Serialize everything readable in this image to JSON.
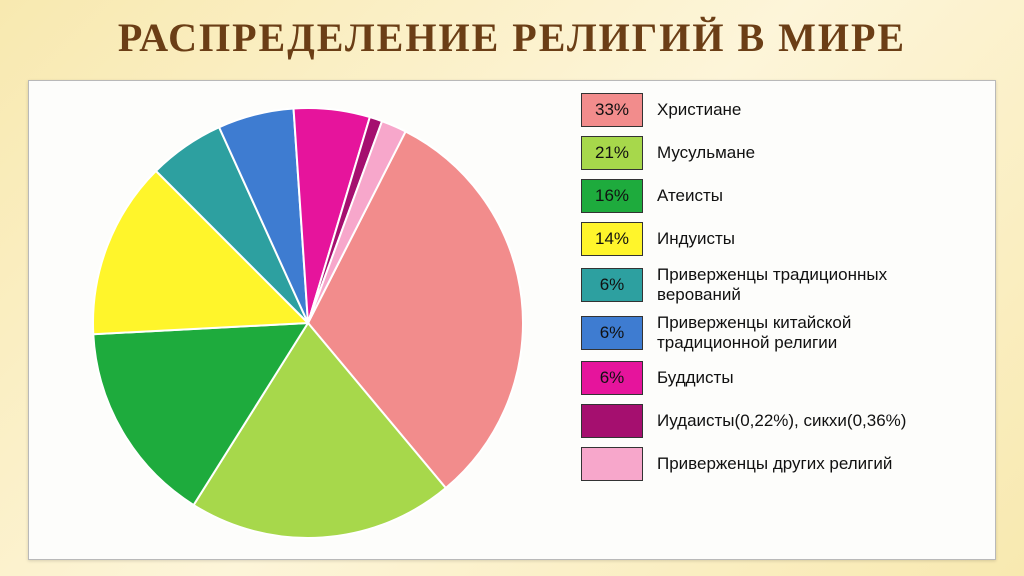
{
  "title": "РАСПРЕДЕЛЕНИЕ РЕЛИГИЙ В МИРЕ",
  "chart": {
    "type": "pie",
    "background_color": "#fdfdfb",
    "border_color": "#b9b9b9",
    "radius": 215,
    "start_angle_deg": -63,
    "slice_gap_color": "#ffffff",
    "label_fontsize": 17,
    "label_color": "#111111",
    "swatch_border": "#333333",
    "swatch_w": 62,
    "swatch_h": 34,
    "slices": [
      {
        "label": "Христиане",
        "pct_display": "33%",
        "value": 33,
        "color": "#f28c8c"
      },
      {
        "label": "Мусульмане",
        "pct_display": "21%",
        "value": 21,
        "color": "#a7d84b"
      },
      {
        "label": "Атеисты",
        "pct_display": "16%",
        "value": 16,
        "color": "#1eab3d"
      },
      {
        "label": "Индуисты",
        "pct_display": "14%",
        "value": 14,
        "color": "#fff52b"
      },
      {
        "label": "Приверженцы традиционных верований",
        "pct_display": "6%",
        "value": 6,
        "color": "#2da0a0"
      },
      {
        "label": "Приверженцы китайской традиционной религии",
        "pct_display": "6%",
        "value": 6,
        "color": "#3e7cd1"
      },
      {
        "label": "Буддисты",
        "pct_display": "6%",
        "value": 6,
        "color": "#e6149c"
      },
      {
        "label": "Иудаисты(0,22%), сикхи(0,36%)",
        "pct_display": "",
        "value": 1,
        "color": "#a50f6f"
      },
      {
        "label": "Приверженцы других религий",
        "pct_display": "",
        "value": 2,
        "color": "#f7a7cb"
      }
    ]
  },
  "page_bg_gradient": [
    "#f8e9b0",
    "#fdf5d9",
    "#f8e9b0"
  ],
  "title_color": "#6b3e16",
  "title_fontsize": 40
}
